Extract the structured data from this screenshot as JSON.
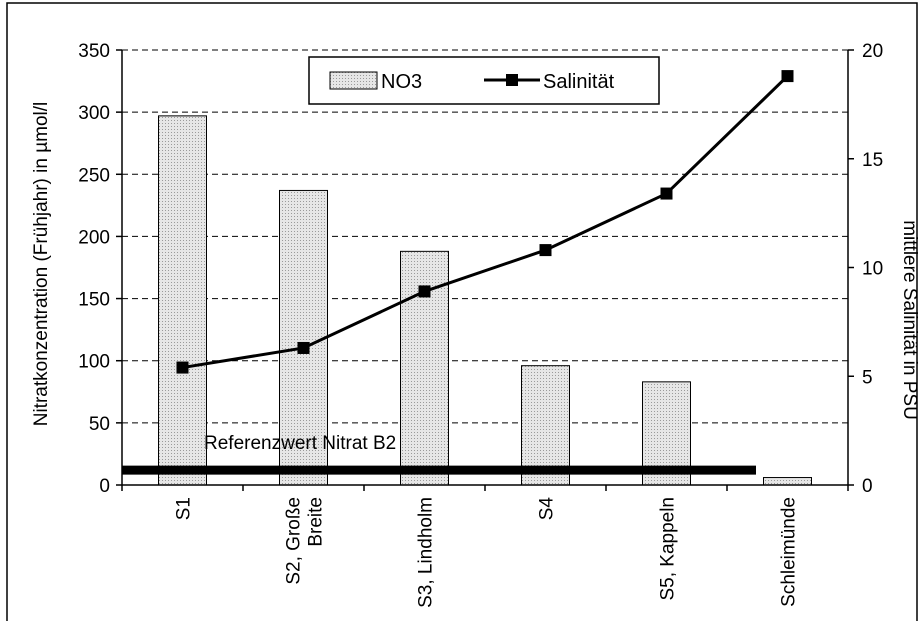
{
  "chart_data": {
    "type": "bar",
    "categories": [
      "S1",
      "S2, Große Breite",
      "S3, Lindholm",
      "S4",
      "S5, Kappeln",
      "Schleimünde"
    ],
    "category_lines": [
      [
        "S1"
      ],
      [
        "S2, Große",
        "Breite"
      ],
      [
        "S3, Lindholm"
      ],
      [
        "S4"
      ],
      [
        "S5, Kappeln"
      ],
      [
        "Schleimünde"
      ]
    ],
    "series": [
      {
        "name": "NO3",
        "type": "bar",
        "axis": "left",
        "values": [
          297,
          237,
          188,
          96,
          83,
          6
        ]
      },
      {
        "name": "Salinität",
        "type": "line",
        "axis": "right",
        "values": [
          5.4,
          6.3,
          8.9,
          10.8,
          13.4,
          18.8
        ]
      }
    ],
    "ylabel": "Nitratkonzentration (Frühjahr) in µmol/l",
    "y2label": "mittlere Salinität in PSU",
    "ylim": [
      0,
      350
    ],
    "y2lim": [
      0,
      20
    ],
    "yticks": [
      0,
      50,
      100,
      150,
      200,
      250,
      300,
      350
    ],
    "y2ticks": [
      0,
      5,
      10,
      15,
      20
    ],
    "reference_line": {
      "label": "Referenzwert Nitrat B2",
      "value": 12
    },
    "grid": "horizontal dashed",
    "legend_position": "top-center",
    "colors": {
      "bar_fill": "#d9d9d9",
      "bar_stroke": "#000000",
      "line": "#000000",
      "grid": "#000000"
    }
  }
}
